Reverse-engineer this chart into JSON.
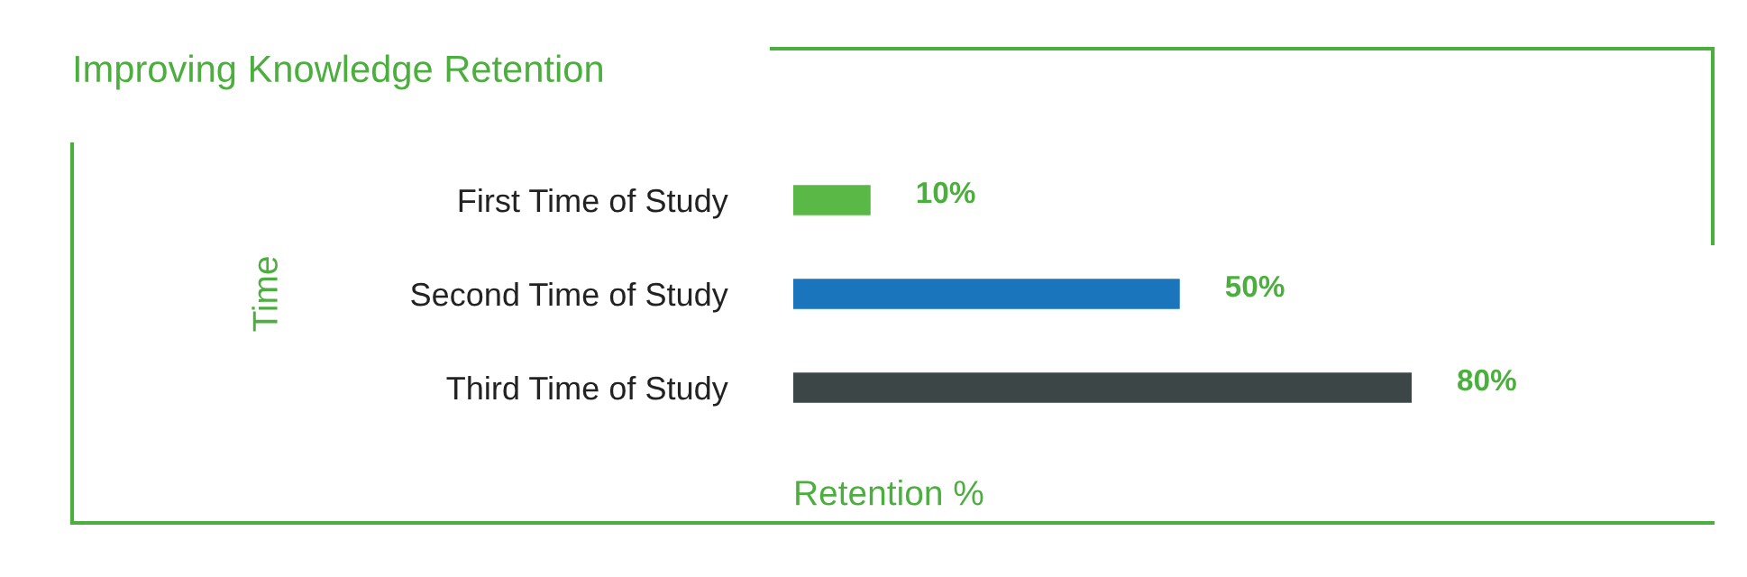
{
  "chart_data": {
    "type": "bar",
    "orientation": "horizontal",
    "title": "Improving Knowledge Retention",
    "xlabel": "Retention %",
    "ylabel": "Time",
    "categories": [
      "First Time of Study",
      "Second Time of Study",
      "Third Time of Study"
    ],
    "values": [
      10,
      50,
      80
    ],
    "colors": [
      "#5ab946",
      "#1a75bc",
      "#3d4647"
    ],
    "value_labels": [
      "10%",
      "50%",
      "80%"
    ],
    "tick_labels": "y",
    "grid": false,
    "legend": false
  }
}
